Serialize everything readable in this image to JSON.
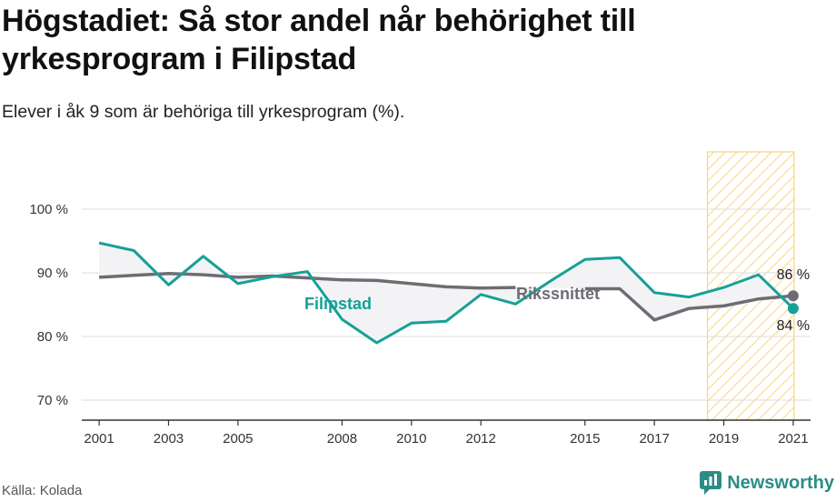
{
  "title": "Högstadiet: Så stor andel når behörighet till yrkesprogram i Filipstad",
  "subtitle": "Elever i åk 9 som är behöriga till yrkesprogram (%).",
  "source": "Källa: Kolada",
  "brand": "Newsworthy",
  "colors": {
    "filipstad": "#17a097",
    "riket": "#6e6c73",
    "fill": "#f3f3f5",
    "highlight": "#f5cf6b",
    "grid": "#dddddd"
  },
  "chart_data": {
    "type": "line",
    "x": [
      2001,
      2002,
      2003,
      2004,
      2005,
      2006,
      2007,
      2008,
      2009,
      2010,
      2011,
      2012,
      2013,
      2014,
      2015,
      2016,
      2017,
      2018,
      2019,
      2020,
      2021
    ],
    "x_ticks": [
      2001,
      2003,
      2005,
      2008,
      2010,
      2012,
      2015,
      2017,
      2019,
      2021
    ],
    "x_tick_labels": [
      "2001",
      "2003",
      "2005",
      "2008",
      "2010",
      "2012",
      "2015",
      "2017",
      "2019",
      "2021"
    ],
    "ylim": [
      67,
      112
    ],
    "y_ticks": [
      70,
      80,
      90,
      100
    ],
    "y_tick_labels": [
      "70 %",
      "80 %",
      "90 %",
      "100 %"
    ],
    "grid": true,
    "highlight_range": [
      2019,
      2021
    ],
    "series": [
      {
        "name": "Filipstad",
        "values": [
          94.7,
          93.5,
          88.1,
          92.6,
          88.3,
          89.4,
          90.2,
          82.7,
          79.0,
          82.1,
          82.4,
          86.6,
          85.1,
          88.7,
          92.1,
          92.4,
          86.9,
          86.2,
          87.7,
          89.7,
          84.4
        ]
      },
      {
        "name": "Rikssnittet",
        "values": [
          89.3,
          89.6,
          89.9,
          89.7,
          89.3,
          89.5,
          89.2,
          88.9,
          88.8,
          88.3,
          87.8,
          87.6,
          87.7,
          null,
          87.5,
          87.5,
          82.6,
          84.4,
          84.8,
          85.9,
          86.4
        ]
      }
    ],
    "end_labels": {
      "Rikssnittet": "86 %",
      "Filipstad": "84 %"
    }
  }
}
